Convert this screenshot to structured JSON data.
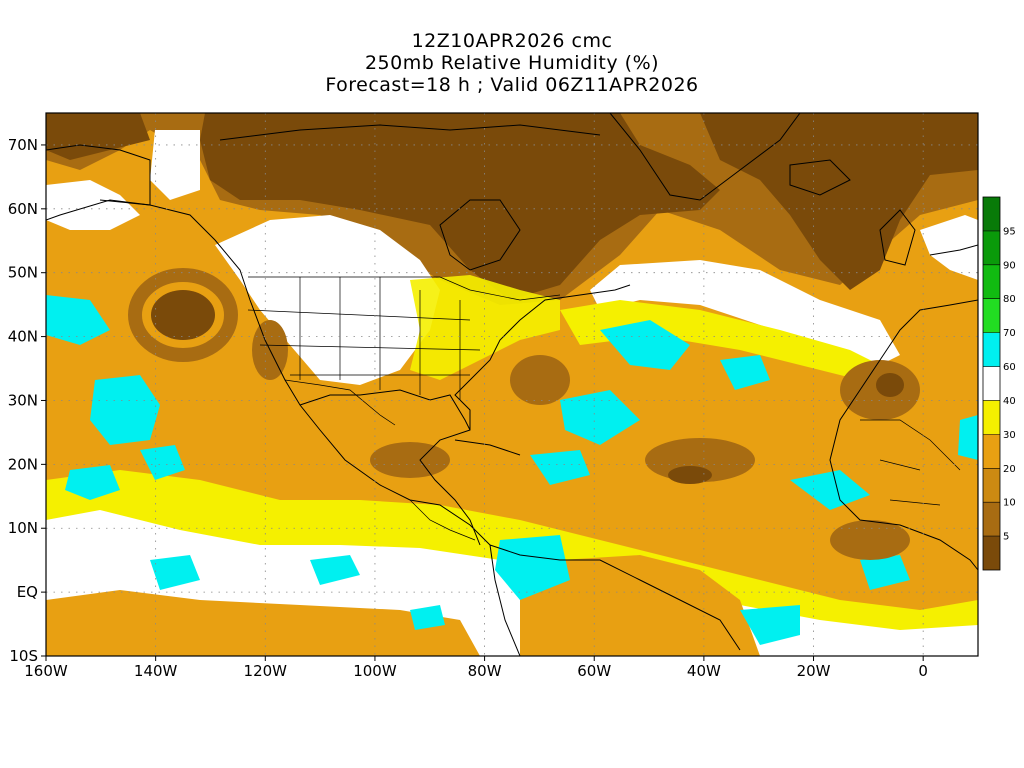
{
  "header": {
    "line1": "12Z10APR2026 cmc",
    "line2": "250mb Relative Humidity (%)",
    "line3": "Forecast=18 h ; Valid 06Z11APR2026"
  },
  "map": {
    "lon_range": [
      -160,
      10
    ],
    "lat_range": [
      -10,
      75
    ],
    "lat_ticks": [
      {
        "value": 70,
        "label": "70N"
      },
      {
        "value": 60,
        "label": "60N"
      },
      {
        "value": 50,
        "label": "50N"
      },
      {
        "value": 40,
        "label": "40N"
      },
      {
        "value": 30,
        "label": "30N"
      },
      {
        "value": 20,
        "label": "20N"
      },
      {
        "value": 10,
        "label": "10N"
      },
      {
        "value": 0,
        "label": "EQ"
      },
      {
        "value": -10,
        "label": "10S"
      }
    ],
    "lon_ticks": [
      {
        "value": -160,
        "label": "160W"
      },
      {
        "value": -140,
        "label": "140W"
      },
      {
        "value": -120,
        "label": "120W"
      },
      {
        "value": -100,
        "label": "100W"
      },
      {
        "value": -80,
        "label": "80W"
      },
      {
        "value": -60,
        "label": "60W"
      },
      {
        "value": -40,
        "label": "40W"
      },
      {
        "value": -20,
        "label": "20W"
      },
      {
        "value": 0,
        "label": "0"
      }
    ],
    "grid": true
  },
  "colorbar": {
    "levels": [
      "5",
      "10",
      "20",
      "30",
      "40",
      "60",
      "70",
      "80",
      "90",
      "95"
    ],
    "colors": [
      "#7a4a0a",
      "#a86c12",
      "#cc8a12",
      "#e8a012",
      "#f5f000",
      "#ffffff",
      "#00f0f0",
      "#22dd22",
      "#11bb11",
      "#0a9a0a",
      "#087a08"
    ]
  },
  "palette": {
    "very_dry": "#7a4a0a",
    "dry": "#a86c12",
    "mid_dry": "#cc8a12",
    "orange": "#e8a012",
    "yellow": "#f5f000",
    "white": "#ffffff",
    "cyan": "#00f0f0"
  }
}
